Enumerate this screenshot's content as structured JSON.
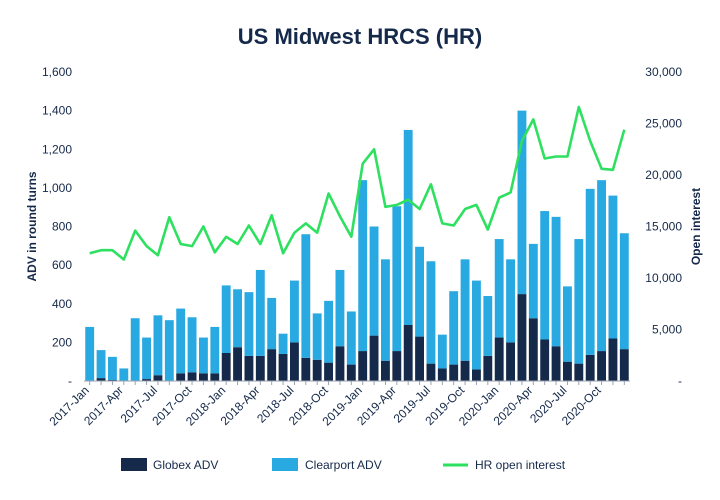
{
  "chart_data": {
    "type": "bar",
    "title": "US Midwest HRCS (HR)",
    "ylabel": "ADV in round turns",
    "y2label": "Open interest",
    "ylim": [
      0,
      1600
    ],
    "y2lim": [
      0,
      30000
    ],
    "yticks": [
      "-",
      "200",
      "400",
      "600",
      "800",
      "1,000",
      "1,200",
      "1,400",
      "1,600"
    ],
    "y2ticks": [
      "-",
      "5,000",
      "10,000",
      "15,000",
      "20,000",
      "25,000",
      "30,000"
    ],
    "y_tick_values": [
      0,
      200,
      400,
      600,
      800,
      1000,
      1200,
      1400,
      1600
    ],
    "y2_tick_values": [
      0,
      5000,
      10000,
      15000,
      20000,
      25000,
      30000
    ],
    "x_tick_labels": [
      "2017-Jan",
      "2017-Apr",
      "2017-Jul",
      "2017-Oct",
      "2018-Jan",
      "2018-Apr",
      "2018-Jul",
      "2018-Oct",
      "2019-Jan",
      "2019-Apr",
      "2019-Jul",
      "2019-Oct",
      "2020-Jan",
      "2020-Apr",
      "2020-Jul",
      "2020-Oct"
    ],
    "x_tick_every": 3,
    "categories": [
      "2017-Jan",
      "2017-Feb",
      "2017-Mar",
      "2017-Apr",
      "2017-May",
      "2017-Jun",
      "2017-Jul",
      "2017-Aug",
      "2017-Sep",
      "2017-Oct",
      "2017-Nov",
      "2017-Dec",
      "2018-Jan",
      "2018-Feb",
      "2018-Mar",
      "2018-Apr",
      "2018-May",
      "2018-Jun",
      "2018-Jul",
      "2018-Aug",
      "2018-Sep",
      "2018-Oct",
      "2018-Nov",
      "2018-Dec",
      "2019-Jan",
      "2019-Feb",
      "2019-Mar",
      "2019-Apr",
      "2019-May",
      "2019-Jun",
      "2019-Jul",
      "2019-Aug",
      "2019-Sep",
      "2019-Oct",
      "2019-Nov",
      "2019-Dec",
      "2020-Jan",
      "2020-Feb",
      "2020-Mar",
      "2020-Apr",
      "2020-May",
      "2020-Jun",
      "2020-Jul",
      "2020-Aug",
      "2020-Sep",
      "2020-Oct",
      "2020-Nov",
      "2020-Dec"
    ],
    "series": [
      {
        "name": "Globex ADV",
        "type": "bar",
        "stack": "adv",
        "axis": "left",
        "color": "#15294a",
        "values": [
          0,
          15,
          5,
          0,
          0,
          10,
          30,
          0,
          40,
          45,
          40,
          40,
          145,
          175,
          130,
          130,
          165,
          140,
          200,
          120,
          110,
          95,
          180,
          85,
          155,
          235,
          105,
          155,
          290,
          230,
          90,
          65,
          85,
          105,
          60,
          130,
          225,
          200,
          450,
          325,
          215,
          180,
          100,
          90,
          135,
          155,
          220,
          165
        ]
      },
      {
        "name": "Clearport ADV",
        "type": "bar",
        "stack": "adv",
        "axis": "left",
        "color": "#29a9e1",
        "values": [
          280,
          145,
          120,
          65,
          325,
          215,
          310,
          315,
          335,
          285,
          185,
          240,
          350,
          300,
          330,
          445,
          265,
          105,
          320,
          640,
          240,
          320,
          395,
          275,
          885,
          565,
          525,
          750,
          1010,
          465,
          530,
          175,
          380,
          525,
          460,
          310,
          510,
          430,
          950,
          385,
          665,
          670,
          390,
          645,
          860,
          885,
          740,
          600
        ]
      },
      {
        "name": "HR open interest",
        "type": "line",
        "axis": "right",
        "color": "#2ee05f",
        "values": [
          12400,
          12700,
          12700,
          11800,
          14600,
          13100,
          12200,
          15900,
          13300,
          13100,
          15000,
          12500,
          14000,
          13300,
          15100,
          13300,
          16100,
          12400,
          14400,
          15300,
          14400,
          18200,
          16000,
          14000,
          21100,
          22500,
          16900,
          17100,
          17600,
          16700,
          19100,
          15300,
          15100,
          16700,
          17100,
          14700,
          17800,
          18300,
          23300,
          25400,
          21600,
          21800,
          21800,
          26600,
          23300,
          20600,
          20500,
          24400
        ]
      }
    ],
    "legend": [
      "Globex ADV",
      "Clearport ADV",
      "HR open interest"
    ],
    "legend_position": "bottom"
  }
}
